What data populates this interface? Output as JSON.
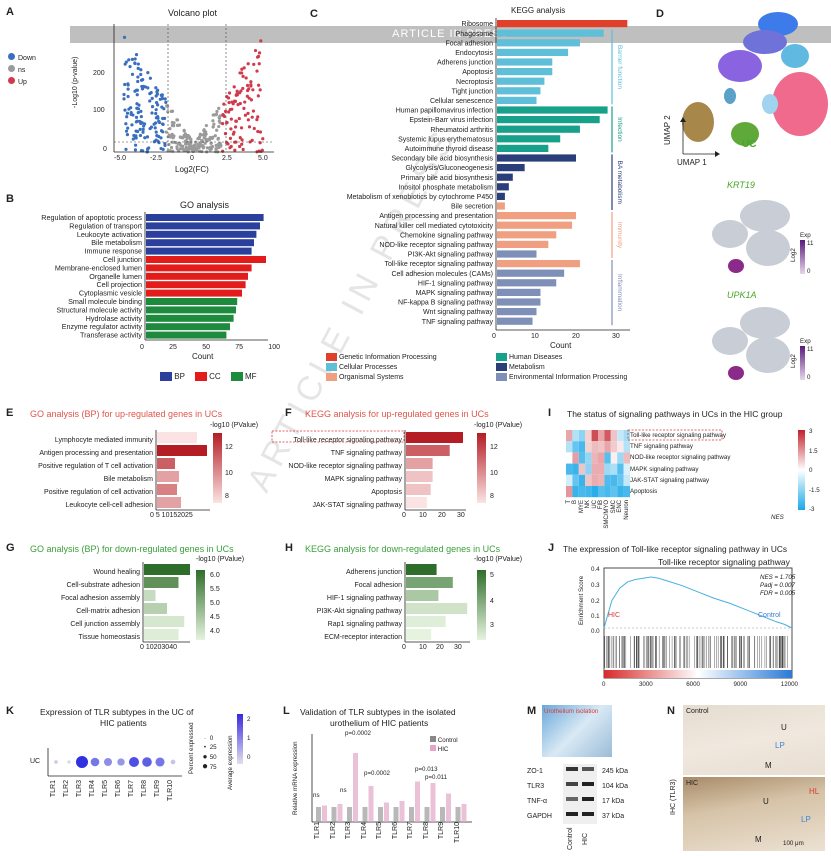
{
  "banner": "ARTICLE IN PRESS",
  "watermark": "ARTICLE IN PRESS",
  "panels": {
    "A": {
      "label": "A",
      "title": "Volcano plot",
      "ylabel": "-Log10 (p-value)",
      "xlabel": "Log2(FC)",
      "yticks": [
        "0",
        "100",
        "200"
      ],
      "xticks": [
        "-5.0",
        "-2.5",
        "0",
        "2.5",
        "5.0"
      ],
      "legend": [
        {
          "name": "Down",
          "color": "#3a6fbf"
        },
        {
          "name": "ns",
          "color": "#9a9a9a"
        },
        {
          "name": "Up",
          "color": "#d03a4a"
        }
      ]
    },
    "B": {
      "label": "B",
      "title": "GO analysis",
      "xlabel": "Count",
      "xticks": [
        "0",
        "25",
        "50",
        "75",
        "100"
      ],
      "legend": [
        {
          "name": "BP",
          "color": "#2b3f9c"
        },
        {
          "name": "CC",
          "color": "#e21b1b"
        },
        {
          "name": "MF",
          "color": "#1e8a3e"
        }
      ]
    },
    "C": {
      "label": "C",
      "title": "KEGG analysis",
      "xlabel": "Count",
      "xticks": [
        "0",
        "10",
        "20",
        "30"
      ],
      "groups": [
        {
          "name": "Barrier function",
          "color": "#5fbfd8"
        },
        {
          "name": "Infection",
          "color": "#17a08a"
        },
        {
          "name": "BA metabolism",
          "color": "#2a3f7a"
        },
        {
          "name": "Immunity",
          "color": "#f0a080"
        },
        {
          "name": "Inflammation",
          "color": "#7f90b8"
        }
      ],
      "legend": [
        {
          "name": "Genetic Information Processing",
          "color": "#e0402a"
        },
        {
          "name": "Human Diseases",
          "color": "#17a08a"
        },
        {
          "name": "Cellular Processes",
          "color": "#5fbfd8"
        },
        {
          "name": "Metabolism",
          "color": "#2a3f7a"
        },
        {
          "name": "Organismal Systems",
          "color": "#f0a080"
        },
        {
          "name": "Environmental Information Processing",
          "color": "#7f90b8"
        }
      ]
    },
    "D": {
      "label": "D",
      "umap2": "UMAP 2",
      "umap1": "UMAP 1",
      "uc": "UC",
      "gene1": "KRT19",
      "gene2": "UPK1A",
      "exp": "Exp",
      "log2": "Log2",
      "vmax": "11",
      "vmin": "0"
    },
    "E": {
      "label": "E",
      "title": "GO analysis (BP) for up-regulated genes in UCs",
      "legend": "-log10 (PValue)",
      "ticks": [
        "12",
        "10",
        "8"
      ],
      "xticks": "0 5 10152025"
    },
    "F": {
      "label": "F",
      "title": "KEGG analysis for up-regulated genes in UCs",
      "legend": "-log10 (PValue)",
      "ticks": [
        "12",
        "10",
        "8"
      ],
      "xticks": [
        "0",
        "10",
        "20",
        "30"
      ]
    },
    "G": {
      "label": "G",
      "title": "GO analysis (BP) for down-regulated genes in UCs",
      "legend": "-log10 (PValue)",
      "ticks": [
        "6.0",
        "5.5",
        "5.0",
        "4.5",
        "4.0"
      ],
      "xticks": "0 10203040"
    },
    "H": {
      "label": "H",
      "title": "KEGG analysis for down-regulated genes in UCs",
      "legend": "-log10 (PValue)",
      "ticks": [
        "5",
        "4",
        "3"
      ],
      "xticks": [
        "0",
        "10",
        "20",
        "30"
      ]
    },
    "I": {
      "label": "I",
      "title": "The status of signaling pathways in UCs in the HIC group",
      "nes": "NES",
      "ticks": [
        "3",
        "1.5",
        "0",
        "-1.5",
        "-3"
      ],
      "rows": [
        "Toll-like receptor signaling pathway",
        "TNF signaling pathway",
        "NOD-like receptor signaling pathway",
        "MAPK signaling pathway",
        "JAK-STAT signaling pathway",
        "Apoptosis"
      ],
      "cols": [
        "T",
        "B",
        "MYE",
        "NK",
        "UC",
        "FIB",
        "SMC/MYO",
        "SMC",
        "ENC",
        "Neuron"
      ]
    },
    "J": {
      "label": "J",
      "title": "The expression of Toll-like receptor signaling pathway in UCs",
      "subtitle": "Toll-like receptor signaling pathway",
      "stats": [
        "NES = 1.705",
        "Padj = 0.007",
        "FDR = 0.005"
      ],
      "ylabel": "Enrichment Score",
      "hic": "HIC",
      "control": "Control",
      "yticks": [
        "0.4",
        "0.3",
        "0.2",
        "0.1",
        "0.0"
      ],
      "xticks": [
        "0",
        "3000",
        "6000",
        "9000",
        "12000"
      ]
    },
    "K": {
      "label": "K",
      "title1": "Expression of TLR subtypes in the UC of",
      "title2": "HIC patients",
      "row": "UC",
      "pct_title": "Percent expressed",
      "pct": [
        "0",
        "25",
        "50",
        "75"
      ],
      "avg_title": "Average expression",
      "avg_ticks": [
        "2",
        "1",
        "0"
      ]
    },
    "L": {
      "label": "L",
      "title1": "Validation of TLR subtypes in the isolated",
      "title2": "urothelium of HIC patients",
      "ylabel": "Relative mRNA expression",
      "legend": [
        {
          "name": "Control",
          "color": "#888888"
        },
        {
          "name": "HIC",
          "color": "#e3a6c8"
        }
      ],
      "p": [
        "p=0.0002",
        "p=0.0002",
        "p=0.013",
        "p=0.011"
      ],
      "ns": "ns"
    },
    "M": {
      "label": "M",
      "isolation": "Urothelium isolation",
      "blots": [
        {
          "name": "ZO-1",
          "kda": "245 kDa"
        },
        {
          "name": "TLR3",
          "kda": "104 kDa"
        },
        {
          "name": "TNF-α",
          "kda": "17 kDa"
        },
        {
          "name": "GAPDH",
          "kda": "37 kDa"
        }
      ],
      "lanes": [
        "Control",
        "HIC"
      ]
    },
    "N": {
      "label": "N",
      "control": "Control",
      "hic": "HIC",
      "ylabel": "IHC (TLR3)",
      "u": "U",
      "lp": "LP",
      "m": "M",
      "hl": "HL",
      "scale": "100 μm"
    }
  },
  "chart_data": [
    {
      "id": "B",
      "type": "bar",
      "orientation": "horizontal",
      "categories": [
        "Regulation of apoptotic process",
        "Regulation of transport",
        "Leukocyte activation",
        "Bile metabolism",
        "Immune response",
        "Cell junction",
        "Membrane-enclosed lumen",
        "Organelle lumen",
        "Cell projection",
        "Cytoplasmic vesicle",
        "Small molecule binding",
        "Structural molecule activity",
        "Hydrolase activity",
        "Enzyme regulator activity",
        "Transferase activity"
      ],
      "values": [
        98,
        95,
        92,
        90,
        88,
        100,
        88,
        85,
        83,
        80,
        76,
        75,
        73,
        70,
        67
      ],
      "groups": [
        "BP",
        "BP",
        "BP",
        "BP",
        "BP",
        "CC",
        "CC",
        "CC",
        "CC",
        "CC",
        "MF",
        "MF",
        "MF",
        "MF",
        "MF"
      ],
      "xlabel": "Count",
      "xlim": [
        0,
        100
      ]
    },
    {
      "id": "C",
      "type": "bar",
      "orientation": "horizontal",
      "categories": [
        "Ribosome",
        "Phagosome",
        "Focal adhesion",
        "Endocytosis",
        "Adherens junction",
        "Apoptosis",
        "Necroptosis",
        "Tight junction",
        "Cellular senescence",
        "Human papillomavirus infection",
        "Epstein-Barr virus infection",
        "Rheumatoid arthritis",
        "Systemic lupus erythematosus",
        "Autoimmune thyroid disease",
        "Secondary bile acid biosynthesis",
        "Glycolysis/Gluconeogenesis",
        "Primary bile acid biosynthesis",
        "Inositol phosphate metabolism",
        "Metabolism of xenobiotics by cytochrome P450",
        "Bile secretion",
        "Antigen processing and presentation",
        "Natural killer cell mediated cytotoxicity",
        "Chemokine signaling pathway",
        "NOD-like receptor signaling pathway",
        "PI3K-Akt signaling pathway",
        "Toll-like receptor signaling pathway",
        "Cell adhesion molecules (CAMs)",
        "HIF-1 signaling pathway",
        "MAPK signaling pathway",
        "NF-kappa B signaling pathway",
        "Wnt signaling pathway",
        "TNF signaling pathway"
      ],
      "values": [
        33,
        27,
        21,
        18,
        14,
        14,
        12,
        11,
        10,
        28,
        26,
        21,
        16,
        13,
        20,
        7,
        4,
        3,
        2,
        2,
        20,
        19,
        15,
        13,
        10,
        21,
        17,
        15,
        11,
        11,
        10,
        9
      ],
      "groups": [
        "Genetic Information Processing",
        "Cellular Processes",
        "Cellular Processes",
        "Cellular Processes",
        "Cellular Processes",
        "Cellular Processes",
        "Cellular Processes",
        "Cellular Processes",
        "Cellular Processes",
        "Human Diseases",
        "Human Diseases",
        "Human Diseases",
        "Human Diseases",
        "Human Diseases",
        "Metabolism",
        "Metabolism",
        "Metabolism",
        "Metabolism",
        "Metabolism",
        "Organismal Systems",
        "Organismal Systems",
        "Organismal Systems",
        "Organismal Systems",
        "Organismal Systems",
        "Environmental Information Processing",
        "Organismal Systems",
        "Environmental Information Processing",
        "Environmental Information Processing",
        "Environmental Information Processing",
        "Environmental Information Processing",
        "Environmental Information Processing",
        "Environmental Information Processing"
      ],
      "xlabel": "Count",
      "xlim": [
        0,
        33
      ]
    },
    {
      "id": "E",
      "type": "bar",
      "orientation": "horizontal",
      "categories": [
        "Lymphocyte mediated immunity",
        "Antigen processing and presentation",
        "Positive regulation of T cell activation",
        "Bile metabolism",
        "Positive regulation of cell activation",
        "Leukocyte cell-cell adhesion"
      ],
      "values": [
        20,
        25,
        9,
        11,
        10,
        12
      ],
      "color_values": [
        7,
        13,
        11,
        9,
        10,
        9
      ],
      "xlim": [
        0,
        25
      ]
    },
    {
      "id": "F",
      "type": "bar",
      "orientation": "horizontal",
      "categories": [
        "Toll-like receptor signaling pathway",
        "TNF signaling pathway",
        "NOD-like receptor signaling pathway",
        "MAPK signaling pathway",
        "Apoptosis",
        "JAK-STAT signaling pathway"
      ],
      "values": [
        30,
        23,
        14,
        14,
        13,
        11
      ],
      "color_values": [
        13,
        11,
        9,
        8,
        8,
        7
      ],
      "xlim": [
        0,
        30
      ]
    },
    {
      "id": "G",
      "type": "bar",
      "orientation": "horizontal",
      "categories": [
        "Wound healing",
        "Cell-substrate adhesion",
        "Focal adhesion assembly",
        "Cell-matrix adhesion",
        "Cell junction assembly",
        "Tissue homeostasis"
      ],
      "values": [
        40,
        30,
        10,
        20,
        35,
        30
      ],
      "color_values": [
        6.3,
        5.7,
        4.4,
        4.6,
        4.2,
        4.1
      ],
      "xlim": [
        0,
        40
      ]
    },
    {
      "id": "H",
      "type": "bar",
      "orientation": "horizontal",
      "categories": [
        "Adherens junction",
        "Focal adhesion",
        "HIF-1 signaling pathway",
        "PI3K-Akt signaling pathway",
        "Rap1 signaling pathway",
        "ECM-receptor interaction"
      ],
      "values": [
        17,
        26,
        18,
        34,
        22,
        14
      ],
      "color_values": [
        5.5,
        4.5,
        3.8,
        3.3,
        3.1,
        3.0
      ],
      "xlim": [
        0,
        35
      ]
    },
    {
      "id": "K",
      "type": "scatter",
      "categories": [
        "TLR1",
        "TLR2",
        "TLR3",
        "TLR4",
        "TLR5",
        "TLR6",
        "TLR7",
        "TLR8",
        "TLR9",
        "TLR10"
      ],
      "pct": [
        2,
        1,
        70,
        30,
        25,
        20,
        45,
        40,
        35,
        5
      ],
      "avg": [
        0.2,
        0.1,
        2.2,
        1.3,
        1.0,
        0.9,
        1.8,
        1.6,
        1.3,
        0.3
      ]
    },
    {
      "id": "L",
      "type": "bar",
      "categories": [
        "TLR1",
        "TLR2",
        "TLR3",
        "TLR4",
        "TLR5",
        "TLR6",
        "TLR7",
        "TLR8",
        "TLR9",
        "TLR10"
      ],
      "series": [
        {
          "name": "Control",
          "values": [
            1.0,
            1.0,
            1.0,
            1.0,
            1.0,
            1.0,
            1.0,
            1.0,
            1.0,
            1.0
          ]
        },
        {
          "name": "HIC",
          "values": [
            1.1,
            1.2,
            4.6,
            2.4,
            1.3,
            1.4,
            2.7,
            2.6,
            1.9,
            1.2
          ]
        }
      ]
    },
    {
      "id": "J",
      "type": "line",
      "xlim": [
        0,
        12000
      ],
      "ylim": [
        0,
        0.45
      ],
      "x": [
        0,
        500,
        1000,
        1500,
        2000,
        2500,
        3000,
        3500,
        4000,
        5000,
        6000,
        7000,
        8000,
        9000,
        10000,
        11000,
        11500,
        12000
      ],
      "y": [
        0.0,
        0.22,
        0.32,
        0.37,
        0.39,
        0.4,
        0.41,
        0.4,
        0.38,
        0.34,
        0.29,
        0.24,
        0.2,
        0.15,
        0.1,
        0.05,
        0.03,
        0.0
      ]
    }
  ]
}
